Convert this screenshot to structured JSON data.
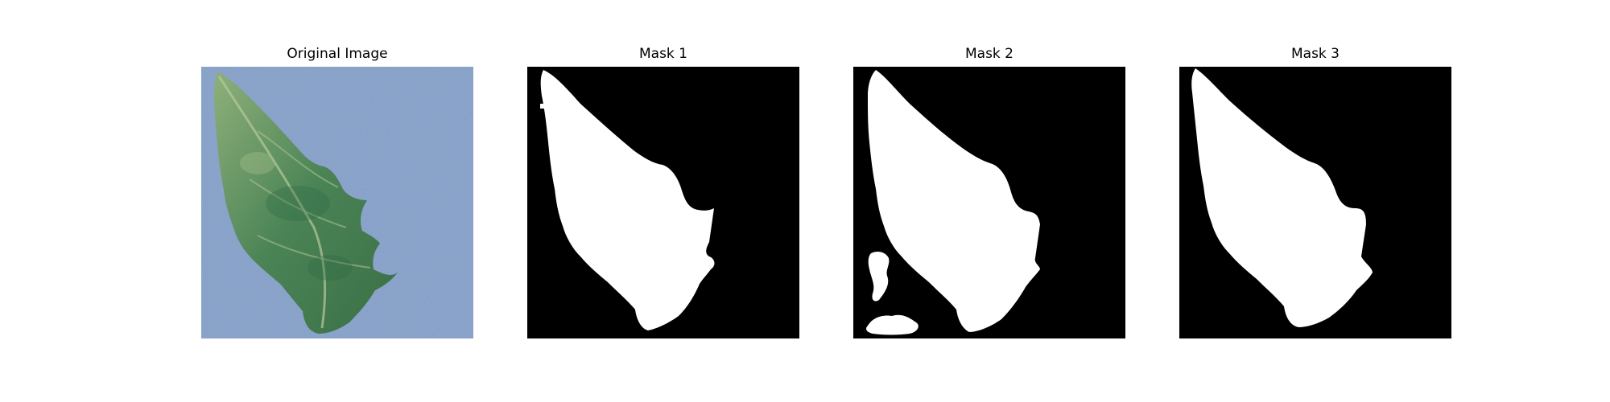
{
  "panels": [
    {
      "title": "Original Image"
    },
    {
      "title": "Mask 1"
    },
    {
      "title": "Mask 2"
    },
    {
      "title": "Mask 3"
    }
  ],
  "colors": {
    "background_cloth": "#7f9ac4",
    "leaf_green": "#4f8a5a",
    "mask_background": "#000000",
    "mask_foreground": "#ffffff"
  }
}
